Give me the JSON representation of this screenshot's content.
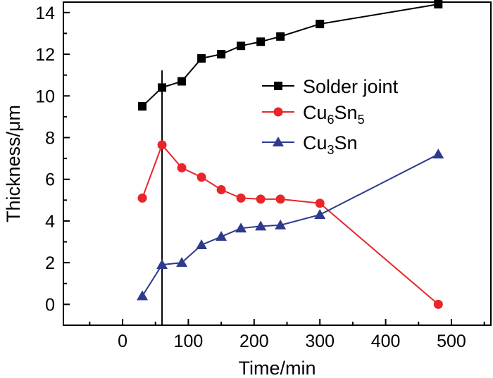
{
  "chart_data": {
    "type": "line",
    "xlabel": "Time/min",
    "ylabel": "Thickness/μm",
    "xlim": [
      -90,
      560
    ],
    "ylim": [
      -1,
      14.5
    ],
    "xticks": [
      0,
      100,
      200,
      300,
      400,
      500
    ],
    "yticks": [
      0,
      2,
      4,
      6,
      8,
      10,
      12,
      14
    ],
    "grid": false,
    "legend_position": "upper-right",
    "vertical_marker_x": 60,
    "series": [
      {
        "name": "Solder joint",
        "name_parts": [
          {
            "t": "Solder joint"
          }
        ],
        "marker": "square",
        "color": "#000000",
        "x": [
          30,
          60,
          90,
          120,
          150,
          180,
          210,
          240,
          300,
          480
        ],
        "y": [
          9.5,
          10.4,
          10.7,
          11.8,
          12.0,
          12.4,
          12.6,
          12.85,
          13.45,
          14.4
        ]
      },
      {
        "name": "Cu6Sn5",
        "name_parts": [
          {
            "t": "Cu"
          },
          {
            "t": "6",
            "sub": true
          },
          {
            "t": "Sn"
          },
          {
            "t": "5",
            "sub": true
          }
        ],
        "marker": "circle",
        "color": "#e8262a",
        "x": [
          30,
          60,
          90,
          120,
          150,
          180,
          210,
          240,
          300,
          480
        ],
        "y": [
          5.1,
          7.65,
          6.55,
          6.1,
          5.5,
          5.1,
          5.05,
          5.05,
          4.85,
          0.0
        ]
      },
      {
        "name": "Cu3Sn",
        "name_parts": [
          {
            "t": "Cu"
          },
          {
            "t": "3",
            "sub": true
          },
          {
            "t": "Sn"
          }
        ],
        "marker": "triangle",
        "color": "#2e3a8c",
        "x": [
          30,
          60,
          90,
          120,
          150,
          180,
          210,
          240,
          300,
          480
        ],
        "y": [
          0.4,
          1.9,
          2.0,
          2.85,
          3.25,
          3.65,
          3.75,
          3.8,
          4.3,
          7.2
        ]
      }
    ]
  }
}
